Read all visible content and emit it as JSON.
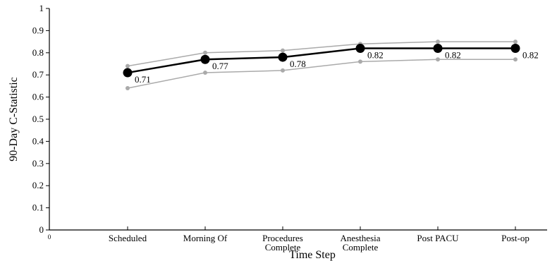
{
  "chart_data": {
    "type": "line",
    "xlabel": "Time Step",
    "ylabel": "90-Day C-Statistic",
    "ylim": [
      0,
      1
    ],
    "yticks": [
      0,
      0.1,
      0.2,
      0.3,
      0.4,
      0.5,
      0.6,
      0.7,
      0.8,
      0.9,
      1
    ],
    "ytick_labels": [
      "0",
      "0.1",
      "0.2",
      "0.3",
      "0.4",
      "0.5",
      "0.6",
      "0.7",
      "0.8",
      "0.9",
      "1"
    ],
    "xtick_origin_label": "0",
    "categories": [
      [
        "Scheduled"
      ],
      [
        "Morning Of"
      ],
      [
        "Procedures",
        "Complete"
      ],
      [
        "Anesthesia",
        "Complete"
      ],
      [
        "Post PACU"
      ],
      [
        "Post-op"
      ]
    ],
    "series": [
      {
        "role": "estimate",
        "values": [
          0.71,
          0.77,
          0.78,
          0.82,
          0.82,
          0.82
        ],
        "color": "#000000"
      },
      {
        "role": "upper",
        "values": [
          0.74,
          0.8,
          0.81,
          0.84,
          0.85,
          0.85
        ],
        "color": "#aaaaaa"
      },
      {
        "role": "lower",
        "values": [
          0.64,
          0.71,
          0.72,
          0.76,
          0.77,
          0.77
        ],
        "color": "#aaaaaa"
      }
    ],
    "data_labels": [
      "0.71",
      "0.77",
      "0.78",
      "0.82",
      "0.82",
      "0.82"
    ],
    "grid": false,
    "legend": "none"
  }
}
